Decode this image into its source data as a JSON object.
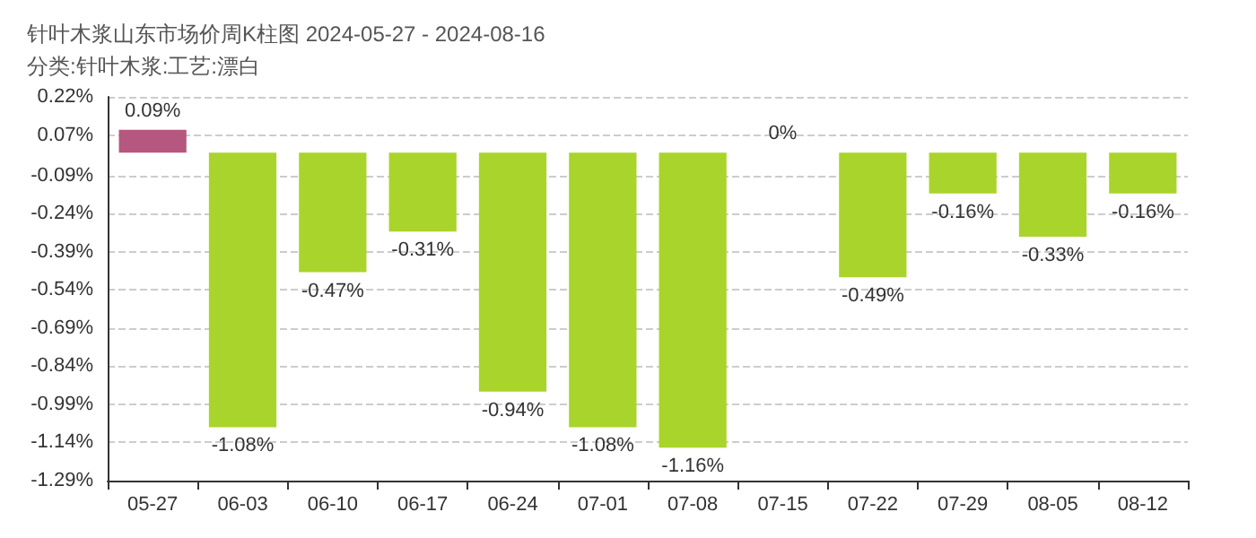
{
  "chart_data": {
    "type": "bar",
    "title": "针叶木浆山东市场价周K柱图 2024-05-27 - 2024-08-16",
    "subtitle": "分类:针叶木浆:工艺:漂白",
    "categories": [
      "05-27",
      "06-03",
      "06-10",
      "06-17",
      "06-24",
      "07-01",
      "07-08",
      "07-15",
      "07-22",
      "07-29",
      "08-05",
      "08-12"
    ],
    "values": [
      0.09,
      -1.08,
      -0.47,
      -0.31,
      -0.94,
      -1.08,
      -1.16,
      0,
      -0.49,
      -0.16,
      -0.33,
      -0.16
    ],
    "colors": [
      "#b5577e",
      "#a9d42b",
      "#a9d42b",
      "#a9d42b",
      "#a9d42b",
      "#a9d42b",
      "#a9d42b",
      "#a9d42b",
      "#a9d42b",
      "#a9d42b",
      "#a9d42b",
      "#a9d42b"
    ],
    "value_labels": [
      "0.09%",
      "-1.08%",
      "-0.47%",
      "-0.31%",
      "-0.94%",
      "-1.08%",
      "-1.16%",
      "0%",
      "-0.49%",
      "-0.16%",
      "-0.33%",
      "-0.16%"
    ],
    "ylim": [
      -1.29,
      0.22
    ],
    "yticks": [
      {
        "value": 0.22,
        "label": "0.22%"
      },
      {
        "value": 0.07,
        "label": "0.07%"
      },
      {
        "value": -0.09,
        "label": "-0.09%"
      },
      {
        "value": -0.24,
        "label": "-0.24%"
      },
      {
        "value": -0.39,
        "label": "-0.39%"
      },
      {
        "value": -0.54,
        "label": "-0.54%"
      },
      {
        "value": -0.69,
        "label": "-0.69%"
      },
      {
        "value": -0.84,
        "label": "-0.84%"
      },
      {
        "value": -0.99,
        "label": "-0.99%"
      },
      {
        "value": -1.14,
        "label": "-1.14%"
      },
      {
        "value": -1.29,
        "label": "-1.29%"
      }
    ],
    "grid": "y"
  }
}
